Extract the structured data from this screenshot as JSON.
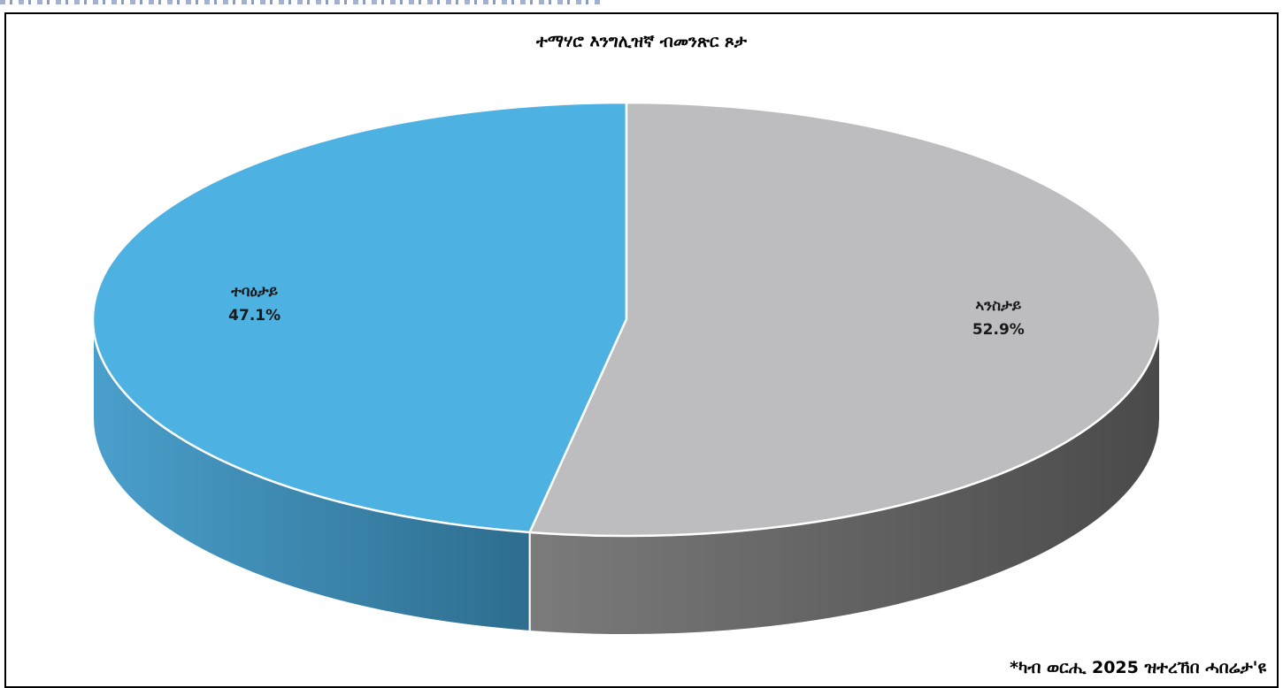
{
  "chart_data": {
    "type": "pie",
    "title": "ተማሃሮ እንግሊዝኛ ብመንጽር ጾታ",
    "categories": [
      "ተባዕታይ",
      "ኣንስታይ"
    ],
    "values": [
      47.1,
      52.9
    ],
    "value_labels": [
      "47.1%",
      "52.9%"
    ],
    "colors": [
      "#4db2e1",
      "#bdbdbf"
    ],
    "side_colors": [
      [
        "#4a9fcc",
        "#2d6d8e"
      ],
      [
        "#7b7b7b",
        "#4a4a4a"
      ]
    ],
    "three_d": true,
    "legend": "none"
  },
  "footnote": "*ካብ ወርሒ 2025 ዝተረኸበ ሓበሬታ'ዩ"
}
